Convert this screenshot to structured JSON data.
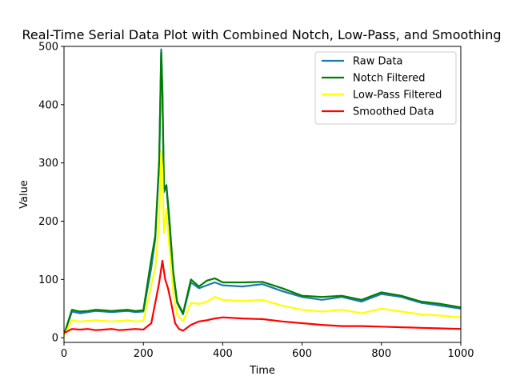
{
  "chart_data": {
    "type": "line",
    "title": "Real-Time Serial Data Plot with Combined Notch, Low-Pass, and Smoothing",
    "xlabel": "Time",
    "ylabel": "Value",
    "xlim": [
      0,
      1000
    ],
    "ylim": [
      -8,
      500
    ],
    "xticks": [
      0,
      200,
      400,
      600,
      800,
      1000
    ],
    "yticks": [
      0,
      100,
      200,
      300,
      400,
      500
    ],
    "grid": false,
    "legend_position": "upper-right",
    "series": [
      {
        "name": "Raw Data",
        "color": "#1f77b4",
        "x": [
          0,
          20,
          40,
          60,
          80,
          100,
          120,
          140,
          160,
          180,
          200,
          220,
          230,
          240,
          245,
          248,
          252,
          258,
          265,
          275,
          285,
          300,
          320,
          340,
          360,
          380,
          400,
          450,
          500,
          550,
          600,
          650,
          700,
          750,
          800,
          850,
          900,
          950,
          1000
        ],
        "y": [
          5,
          45,
          42,
          44,
          46,
          45,
          44,
          45,
          46,
          44,
          45,
          120,
          170,
          300,
          495,
          430,
          250,
          260,
          200,
          110,
          60,
          40,
          95,
          85,
          90,
          95,
          90,
          88,
          92,
          80,
          70,
          65,
          70,
          62,
          75,
          70,
          60,
          55,
          50
        ]
      },
      {
        "name": "Notch Filtered",
        "color": "#008000",
        "x": [
          0,
          20,
          40,
          60,
          80,
          100,
          120,
          140,
          160,
          180,
          200,
          220,
          230,
          240,
          245,
          248,
          252,
          258,
          265,
          275,
          285,
          300,
          320,
          340,
          360,
          380,
          400,
          450,
          500,
          550,
          600,
          650,
          700,
          750,
          800,
          850,
          900,
          950,
          1000
        ],
        "y": [
          5,
          48,
          45,
          46,
          48,
          47,
          46,
          47,
          48,
          46,
          47,
          135,
          175,
          305,
          490,
          420,
          255,
          262,
          210,
          115,
          62,
          42,
          100,
          88,
          98,
          102,
          95,
          95,
          96,
          85,
          72,
          70,
          72,
          65,
          78,
          72,
          62,
          58,
          52
        ]
      },
      {
        "name": "Low-Pass Filtered",
        "color": "#ffff00",
        "x": [
          0,
          20,
          40,
          60,
          80,
          100,
          120,
          140,
          160,
          180,
          200,
          220,
          230,
          240,
          245,
          248,
          252,
          258,
          265,
          275,
          285,
          300,
          320,
          340,
          360,
          380,
          400,
          450,
          500,
          550,
          600,
          650,
          700,
          750,
          800,
          850,
          900,
          950,
          1000
        ],
        "y": [
          3,
          30,
          28,
          29,
          30,
          29,
          28,
          29,
          30,
          28,
          29,
          90,
          120,
          200,
          320,
          290,
          180,
          220,
          160,
          80,
          40,
          28,
          60,
          58,
          62,
          70,
          65,
          63,
          65,
          55,
          48,
          45,
          48,
          42,
          50,
          45,
          40,
          38,
          35
        ]
      },
      {
        "name": "Smoothed Data",
        "color": "#ff0000",
        "x": [
          0,
          20,
          40,
          60,
          80,
          100,
          120,
          140,
          160,
          180,
          200,
          220,
          230,
          240,
          248,
          255,
          262,
          270,
          280,
          290,
          300,
          320,
          340,
          360,
          380,
          400,
          450,
          500,
          550,
          600,
          650,
          700,
          750,
          800,
          850,
          900,
          950,
          1000
        ],
        "y": [
          8,
          15,
          14,
          15,
          13,
          14,
          15,
          13,
          14,
          15,
          14,
          25,
          60,
          95,
          132,
          100,
          85,
          60,
          25,
          15,
          12,
          22,
          28,
          30,
          33,
          35,
          33,
          32,
          28,
          25,
          22,
          20,
          20,
          19,
          18,
          17,
          16,
          15
        ]
      }
    ]
  }
}
